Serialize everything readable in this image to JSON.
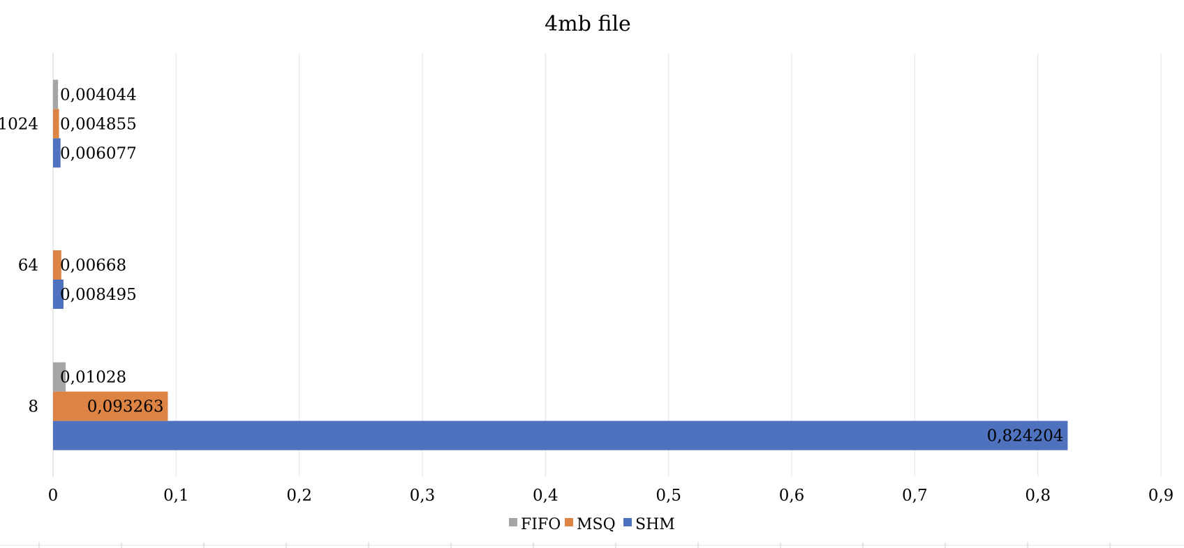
{
  "chart_data": {
    "type": "bar",
    "orientation": "horizontal",
    "title": "4mb file",
    "xlabel": "",
    "ylabel": "",
    "xlim": [
      0,
      0.9
    ],
    "x_ticks": [
      "0",
      "0,1",
      "0,2",
      "0,3",
      "0,4",
      "0,5",
      "0,6",
      "0,7",
      "0,8",
      "0,9"
    ],
    "x_tick_values": [
      0,
      0.1,
      0.2,
      0.3,
      0.4,
      0.5,
      0.6,
      0.7,
      0.8,
      0.9
    ],
    "categories": [
      "8",
      "64",
      "1024"
    ],
    "series": [
      {
        "name": "SHM",
        "color": "#4f72be",
        "values": [
          0.824204,
          0.008495,
          0.006077
        ],
        "labels": [
          "0,824204",
          "0,008495",
          "0,006077"
        ]
      },
      {
        "name": "MSQ",
        "color": "#dd8344",
        "values": [
          0.093263,
          0.00668,
          0.004855
        ],
        "labels": [
          "0,093263",
          "0,00668",
          "0,004855"
        ]
      },
      {
        "name": "FIFO",
        "color": "#a5a5a5",
        "values": [
          0.01028,
          null,
          0.004044
        ],
        "labels": [
          "0,01028",
          "",
          "0,004044"
        ]
      }
    ],
    "legend_order": [
      "FIFO",
      "MSQ",
      "SHM"
    ],
    "legend_position": "bottom",
    "grid": "vertical"
  }
}
